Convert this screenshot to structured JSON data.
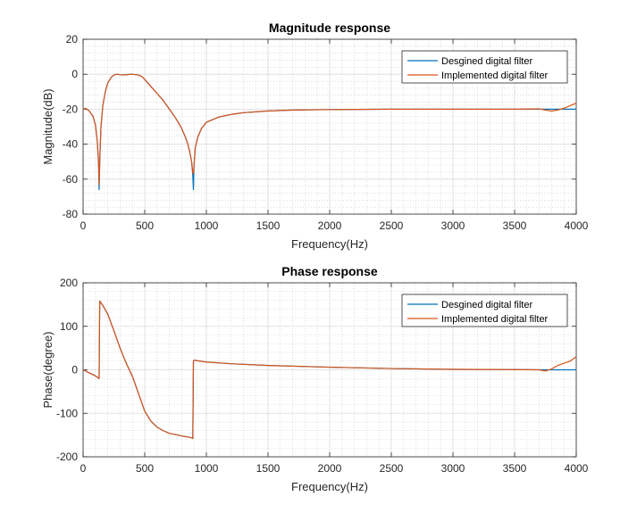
{
  "colors": {
    "designed": "#0072BD",
    "implemented": "#D95319"
  },
  "chart_data": [
    {
      "type": "line",
      "title": "Magnitude response",
      "xlabel": "Frequency(Hz)",
      "ylabel": "Magnitude(dB)",
      "xlim": [
        0,
        4000
      ],
      "ylim": [
        -80,
        20
      ],
      "xticks": [
        0,
        500,
        1000,
        1500,
        2000,
        2500,
        3000,
        3500,
        4000
      ],
      "yticks": [
        20,
        0,
        -20,
        -40,
        -60,
        -80
      ],
      "grid": true,
      "minor_grid": true,
      "legend_position": "top-right",
      "series": [
        {
          "name": "Desgined digital filter",
          "x": [
            0,
            20,
            50,
            80,
            100,
            115,
            125,
            130,
            135,
            145,
            160,
            180,
            200,
            230,
            260,
            280,
            300,
            330,
            350,
            400,
            450,
            480,
            500,
            550,
            600,
            650,
            700,
            750,
            800,
            830,
            850,
            870,
            880,
            890,
            895,
            900,
            910,
            930,
            960,
            1000,
            1100,
            1200,
            1300,
            1500,
            1700,
            2000,
            2500,
            3000,
            3500,
            3700,
            3800,
            3900,
            4000
          ],
          "y": [
            -20,
            -19.5,
            -21,
            -24,
            -29,
            -38,
            -50,
            -66,
            -50,
            -30,
            -18,
            -10,
            -5,
            -1.5,
            -0.2,
            0,
            -0.3,
            -0.4,
            -0.2,
            0,
            -0.5,
            -1.5,
            -3,
            -7,
            -11,
            -15,
            -20,
            -25,
            -31,
            -36,
            -40,
            -46,
            -50,
            -58,
            -66,
            -52,
            -42,
            -36,
            -31,
            -27.5,
            -24.5,
            -23,
            -22,
            -21,
            -20.5,
            -20.2,
            -20,
            -20,
            -20,
            -20,
            -20,
            -20,
            -20
          ]
        },
        {
          "name": "Implemented digital filter",
          "x": [
            0,
            20,
            50,
            80,
            100,
            115,
            125,
            130,
            135,
            145,
            160,
            180,
            200,
            230,
            260,
            280,
            300,
            330,
            350,
            400,
            450,
            480,
            500,
            550,
            600,
            650,
            700,
            750,
            800,
            830,
            850,
            870,
            880,
            890,
            895,
            900,
            910,
            930,
            960,
            1000,
            1100,
            1200,
            1300,
            1500,
            1700,
            2000,
            2500,
            3000,
            3500,
            3700,
            3750,
            3800,
            3850,
            3900,
            3950,
            4000
          ],
          "y": [
            -20,
            -19.5,
            -21,
            -24,
            -29,
            -38,
            -50,
            -63,
            -50,
            -30,
            -18,
            -10,
            -5,
            -1.5,
            -0.2,
            0,
            -0.3,
            -0.4,
            -0.2,
            0,
            -0.5,
            -1.5,
            -3,
            -7,
            -11,
            -15,
            -20,
            -25,
            -31,
            -36,
            -40,
            -46,
            -50,
            -56,
            -57,
            -52,
            -42,
            -36,
            -31,
            -27.5,
            -24.5,
            -23,
            -22,
            -21,
            -20.5,
            -20.2,
            -20,
            -20,
            -20,
            -19.8,
            -20.5,
            -21,
            -20.5,
            -19.5,
            -18,
            -16.5
          ]
        }
      ]
    },
    {
      "type": "line",
      "title": "Phase response",
      "xlabel": "Frequency(Hz)",
      "ylabel": "Phase(degree)",
      "xlim": [
        0,
        4000
      ],
      "ylim": [
        -200,
        200
      ],
      "xticks": [
        0,
        500,
        1000,
        1500,
        2000,
        2500,
        3000,
        3500,
        4000
      ],
      "yticks": [
        200,
        100,
        0,
        -100,
        -200
      ],
      "grid": true,
      "minor_grid": true,
      "legend_position": "top-right",
      "series": [
        {
          "name": "Desgined digital filter",
          "x": [
            0,
            50,
            100,
            125,
            130,
            135,
            160,
            200,
            250,
            300,
            350,
            400,
            450,
            500,
            550,
            600,
            650,
            700,
            800,
            880,
            890,
            895,
            900,
            1000,
            1200,
            1500,
            2000,
            2500,
            3000,
            3500,
            3700,
            4000
          ],
          "y": [
            0,
            -7,
            -14,
            -19,
            -20,
            158,
            148,
            128,
            90,
            50,
            15,
            -15,
            -55,
            -95,
            -118,
            -132,
            -140,
            -146,
            -152,
            -156,
            -158,
            20,
            22,
            18,
            14,
            10,
            6,
            3,
            1,
            0.5,
            0,
            0
          ]
        },
        {
          "name": "Implemented digital filter",
          "x": [
            0,
            50,
            100,
            125,
            130,
            135,
            160,
            200,
            250,
            300,
            350,
            400,
            450,
            500,
            550,
            600,
            650,
            700,
            800,
            880,
            890,
            895,
            900,
            1000,
            1200,
            1500,
            2000,
            2500,
            3000,
            3500,
            3700,
            3750,
            3800,
            3850,
            3900,
            3950,
            4000
          ],
          "y": [
            0,
            -7,
            -14,
            -19,
            -20,
            158,
            148,
            128,
            90,
            50,
            15,
            -15,
            -55,
            -95,
            -118,
            -132,
            -140,
            -146,
            -152,
            -156,
            -158,
            20,
            22,
            18,
            14,
            10,
            6,
            3,
            1,
            0.5,
            0,
            -3,
            2,
            10,
            15,
            20,
            30
          ]
        }
      ]
    }
  ]
}
